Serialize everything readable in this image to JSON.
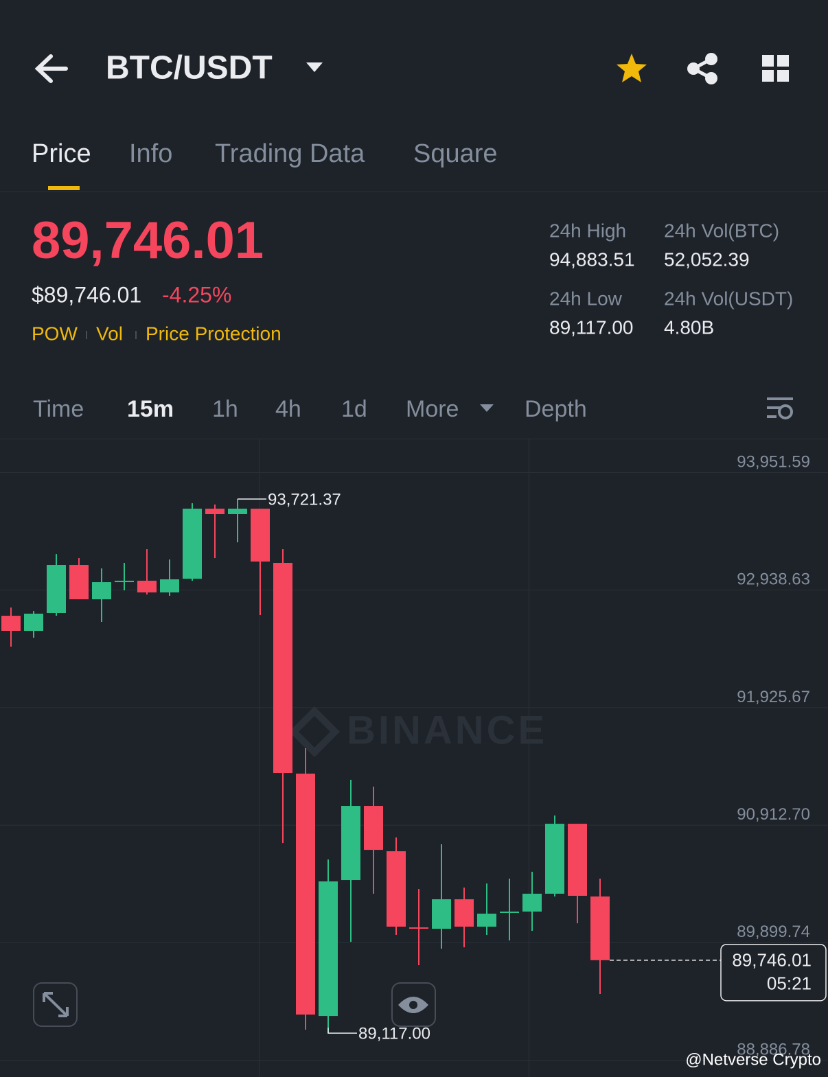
{
  "header": {
    "pair": "BTC/USDT"
  },
  "tabs": [
    "Price",
    "Info",
    "Trading Data",
    "Square"
  ],
  "ticker": {
    "price": "89,746.01",
    "usd_price": "$89,746.01",
    "change": "-4.25%",
    "tags": [
      "POW",
      "Vol",
      "Price Protection"
    ],
    "stats": [
      {
        "label": "24h High",
        "value": "94,883.51"
      },
      {
        "label": "24h Vol(BTC)",
        "value": "52,052.39"
      },
      {
        "label": "24h Low",
        "value": "89,117.00"
      },
      {
        "label": "24h Vol(USDT)",
        "value": "4.80B"
      }
    ]
  },
  "timeframes": [
    "Time",
    "15m",
    "1h",
    "4h",
    "1d",
    "More",
    "Depth"
  ],
  "chart_data": {
    "type": "candlestick",
    "up_color": "#2ebd85",
    "down_color": "#f6465d",
    "grid": true,
    "open": [
      92715,
      92585,
      92739,
      93153,
      92857,
      93005,
      93017,
      92916,
      93034,
      93638,
      93591,
      93638,
      93171,
      91354,
      89265,
      90437,
      91076,
      90685,
      90029,
      90017,
      90271,
      90035,
      90153,
      90165,
      90319,
      90922,
      90295
    ],
    "high": [
      92786,
      92756,
      93247,
      93212,
      93123,
      93171,
      93289,
      93200,
      93685,
      93674,
      93721.37,
      93638,
      93289,
      91573,
      90614,
      91301,
      91242,
      90804,
      90360,
      90745,
      90372,
      90407,
      90449,
      90508,
      90993,
      90922,
      90449
    ],
    "low": [
      92449,
      92526,
      92715,
      92857,
      92662,
      92934,
      92898,
      92887,
      93017,
      93212,
      93348,
      92721,
      90756,
      89147,
      89117,
      89904,
      90319,
      89964,
      89703,
      89845,
      89857,
      89964,
      89916,
      89999,
      90295,
      90064,
      89455
    ],
    "close": [
      92585,
      92733,
      93153,
      92857,
      93005,
      93017,
      92916,
      93029,
      93638,
      93591,
      93638,
      93182,
      91360,
      89277,
      90425,
      91076,
      90697,
      90035,
      90017,
      90271,
      90035,
      90147,
      90165,
      90319,
      90922,
      90301,
      89746.01
    ],
    "ylim": [
      88739,
      94236
    ],
    "yticks": [
      {
        "value": 93951.59,
        "label": "93,951.59"
      },
      {
        "value": 92938.63,
        "label": "92,938.63"
      },
      {
        "value": 91925.67,
        "label": "91,925.67"
      },
      {
        "value": 90912.7,
        "label": "90,912.70"
      },
      {
        "value": 89899.74,
        "label": "89,899.74"
      },
      {
        "value": 88886.78,
        "label": "88,886.78"
      }
    ],
    "high_marker": {
      "value": 93721.37,
      "label": "93,721.37"
    },
    "low_marker": {
      "value": 89117,
      "label": "89,117.00"
    },
    "last_price": {
      "value": 89746.01,
      "label": "89,746.01",
      "countdown": "05:21"
    },
    "watermark": "BINANCE"
  },
  "credit": "@Netverse Crypto"
}
